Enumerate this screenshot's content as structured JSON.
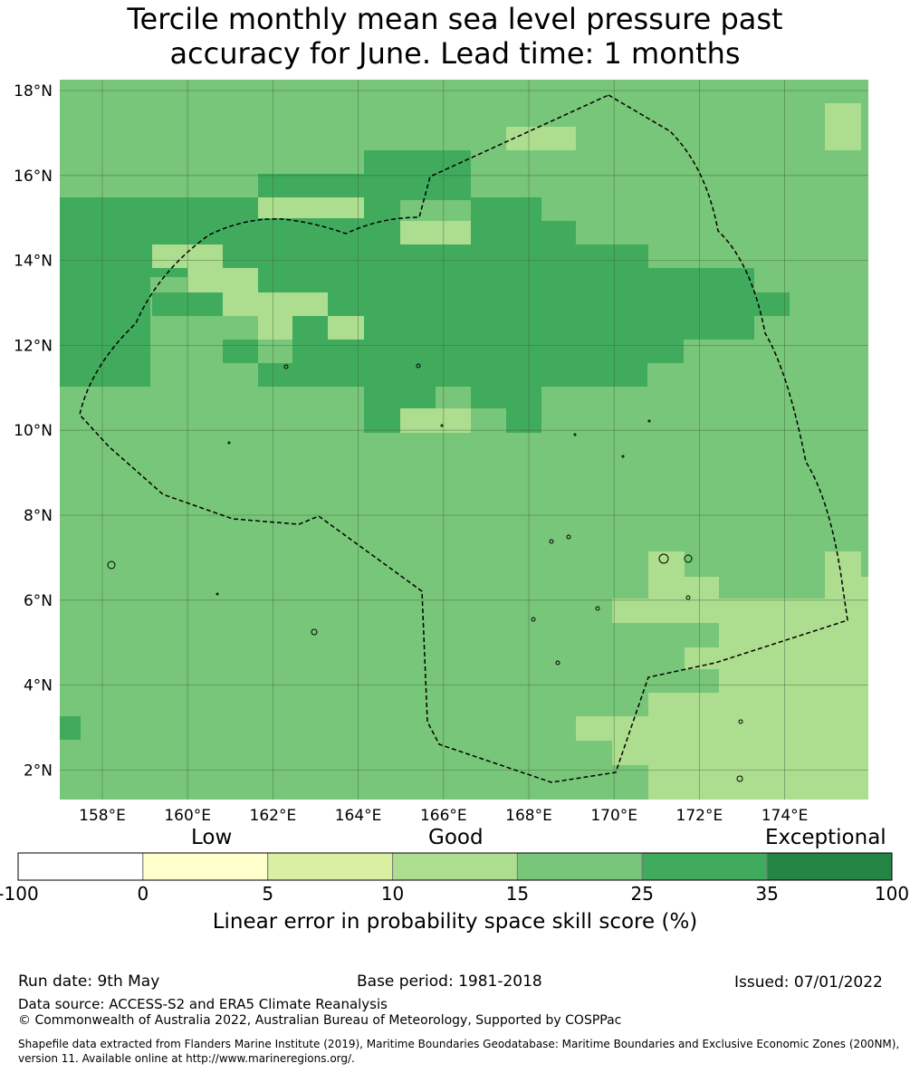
{
  "title": {
    "line1": "Tercile monthly mean sea level pressure past",
    "line2": "accuracy for June. Lead time: 1 months"
  },
  "map": {
    "lon_range": [
      157,
      176
    ],
    "lat_range": [
      1.4,
      18.4
    ],
    "x_ticks": [
      "158°E",
      "160°E",
      "162°E",
      "164°E",
      "166°E",
      "168°E",
      "170°E",
      "172°E",
      "174°E"
    ],
    "y_ticks": [
      "18°N",
      "16°N",
      "14°N",
      "12°N",
      "10°N",
      "8°N",
      "6°N",
      "4°N",
      "2°N"
    ],
    "grid": true,
    "boundary_style": "dashed",
    "note": "Gridded skill categories; dominant category 15-25 with 25-35 band across 11-16°N and 10-15 patches in the south-east"
  },
  "colorbar": {
    "headings": {
      "low": "Low",
      "good": "Good",
      "exceptional": "Exceptional"
    },
    "bounds": [
      "-100",
      "0",
      "5",
      "10",
      "15",
      "25",
      "35",
      "100"
    ],
    "colors": [
      "#ffffff",
      "#ffffcc",
      "#d9f0a3",
      "#addd8e",
      "#78c679",
      "#41ab5d",
      "#238443"
    ],
    "label": "Linear error in probability space skill score (%)"
  },
  "footer": {
    "run_date": "Run date: 9th May",
    "base_period": "Base period: 1981-2018",
    "issued": "Issued: 07/01/2022",
    "data_source": "Data source: ACCESS-S2 and ERA5 Climate Reanalysis",
    "copyright": "© Commonwealth of Australia 2022, Australian Bureau of Meteorology, Supported by COSPPac",
    "shapefile_line1": "Shapefile data extracted from Flanders Marine Institute (2019), Maritime Boundaries Geodatabase: Maritime Boundaries and Exclusive Economic Zones (200NM),",
    "shapefile_line2": "version 11. Available online at http://www.marineregions.org/."
  }
}
